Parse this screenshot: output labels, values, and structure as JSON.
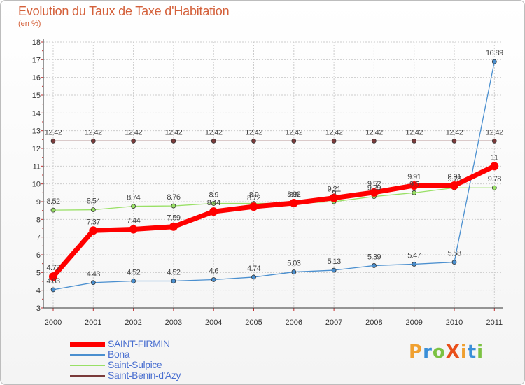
{
  "header": {
    "title": "Evolution du Taux de Taxe d'Habitation",
    "subtitle": "(en %)"
  },
  "logo": {
    "text": "ProXiti",
    "letters": [
      "P",
      "r",
      "o",
      "X",
      "i",
      "t",
      "i"
    ],
    "colors": [
      "#f0a030",
      "#3a8fd8",
      "#7cc242",
      "#e94f1a",
      "#f0a030",
      "#3a8fd8",
      "#7cc242"
    ]
  },
  "chart_data": {
    "type": "line",
    "title": "Evolution du Taux de Taxe d'Habitation",
    "ylabel": "(en %)",
    "xlabel": "",
    "ylim": [
      3,
      18
    ],
    "yticks": [
      3,
      4,
      5,
      6,
      7,
      8,
      9,
      10,
      11,
      12,
      13,
      14,
      15,
      16,
      17,
      18
    ],
    "x": [
      "2000",
      "2001",
      "2002",
      "2003",
      "2004",
      "2005",
      "2006",
      "2007",
      "2008",
      "2009",
      "2010",
      "2011"
    ],
    "series": [
      {
        "name": "SAINT-FIRMIN",
        "color": "#ff0000",
        "width": 7,
        "radius": 6,
        "values": [
          4.77,
          7.37,
          7.44,
          7.59,
          8.44,
          8.72,
          8.92,
          9.21,
          9.52,
          9.91,
          9.91,
          11
        ],
        "labels": [
          "4.77",
          "7.37",
          "7.44",
          "7.59",
          "8.44",
          "8.72",
          "8.92",
          "9.21",
          "9.52",
          "9.91",
          "9.91",
          "11"
        ]
      },
      {
        "name": "Bona",
        "color": "#4a8fcf",
        "width": 1.3,
        "radius": 3,
        "values": [
          4.03,
          4.43,
          4.52,
          4.52,
          4.6,
          4.74,
          5.03,
          5.13,
          5.39,
          5.47,
          5.58,
          16.89
        ],
        "labels": [
          "4.03",
          "4.43",
          "4.52",
          "4.52",
          "4.6",
          "4.74",
          "5.03",
          "5.13",
          "5.39",
          "5.47",
          "5.58",
          "16.89"
        ]
      },
      {
        "name": "Saint-Sulpice",
        "color": "#99e066",
        "width": 1.3,
        "radius": 3,
        "values": [
          8.52,
          8.54,
          8.74,
          8.76,
          8.9,
          8.9,
          8.9,
          9.0,
          9.29,
          9.5,
          9.78,
          9.78
        ],
        "labels": [
          "8.52",
          "8.54",
          "8.74",
          "8.76",
          "8.9",
          "8.9",
          "8.9",
          "9",
          "9.29",
          "9.5",
          "9.78",
          "9.78"
        ]
      },
      {
        "name": "Saint-Benin-d'Azy",
        "color": "#7a3a3a",
        "width": 1.3,
        "radius": 3,
        "values": [
          12.42,
          12.42,
          12.42,
          12.42,
          12.42,
          12.42,
          12.42,
          12.42,
          12.42,
          12.42,
          12.42,
          12.42
        ],
        "labels": [
          "12.42",
          "12.42",
          "12.42",
          "12.42",
          "12.42",
          "12.42",
          "12.42",
          "12.42",
          "12.42",
          "12.42",
          "12.42",
          "12.42"
        ]
      }
    ],
    "grid": true,
    "legend": "bottom-left"
  }
}
